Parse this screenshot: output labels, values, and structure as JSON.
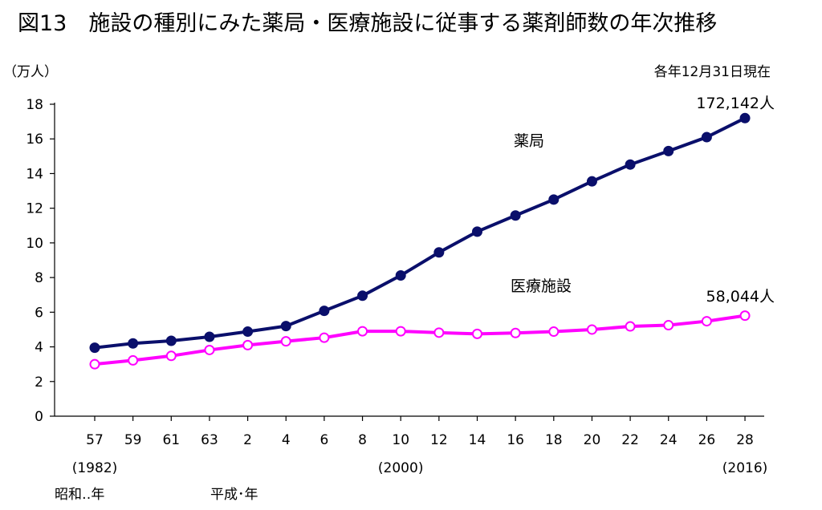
{
  "chart_data": {
    "type": "line",
    "title": "図13　施設の種別にみた薬局・医療施設に従事する薬剤師数の年次推移",
    "subtitle": "各年12月31日現在",
    "ylabel": "（万人）",
    "ylim": [
      0,
      18
    ],
    "yticks": [
      0,
      2,
      4,
      6,
      8,
      10,
      12,
      14,
      16,
      18
    ],
    "categories": [
      "57",
      "59",
      "61",
      "63",
      "2",
      "4",
      "6",
      "8",
      "10",
      "12",
      "14",
      "16",
      "18",
      "20",
      "22",
      "24",
      "26",
      "28"
    ],
    "year_notes": [
      {
        "category": "57",
        "label": "(1982)"
      },
      {
        "category": "10",
        "label": "(2000)"
      },
      {
        "category": "28",
        "label": "(2016)"
      }
    ],
    "era_labels": [
      {
        "category": "57",
        "label": "昭和‥年"
      },
      {
        "category": "2",
        "label": "平成･年"
      }
    ],
    "series": [
      {
        "name": "薬局",
        "color": "#0a0f6b",
        "marker": "filled-circle",
        "values": [
          3.95,
          4.2,
          4.35,
          4.58,
          4.88,
          5.2,
          6.08,
          6.95,
          8.12,
          9.45,
          10.65,
          11.58,
          12.5,
          13.55,
          14.52,
          15.3,
          16.1,
          17.2
        ],
        "end_label": "172,142人"
      },
      {
        "name": "医療施設",
        "color": "#ff00ff",
        "marker": "hollow-circle",
        "values": [
          3.0,
          3.22,
          3.48,
          3.82,
          4.1,
          4.32,
          4.53,
          4.9,
          4.9,
          4.82,
          4.75,
          4.8,
          4.88,
          5.0,
          5.18,
          5.25,
          5.48,
          5.8
        ],
        "end_label": "58,044人"
      }
    ],
    "grid": false,
    "legend": "inline-labels"
  }
}
